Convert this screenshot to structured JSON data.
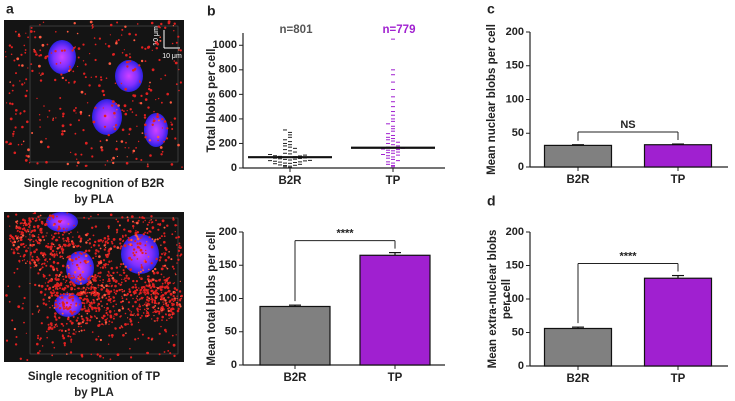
{
  "panel_a": {
    "panel_label": "a",
    "scale_label": "10 μm",
    "images": [
      {
        "caption_lines": [
          "Single recognition of B2R",
          "by PLA"
        ]
      },
      {
        "caption_lines": [
          "Single recognition of TP",
          "by PLA"
        ]
      }
    ]
  },
  "chart_data": [
    {
      "type": "dotplot",
      "panel_label": "b",
      "ylabel_lines": [
        "Total blobs per cell"
      ],
      "categories": [
        "B2R",
        "TP"
      ],
      "annotations": [
        {
          "text": "n=801",
          "color": "#555555"
        },
        {
          "text": "n=779",
          "color": "#a020d0"
        }
      ],
      "groups": [
        {
          "color": "#222222",
          "mean": 88,
          "values": [
            5,
            10,
            15,
            20,
            22,
            25,
            30,
            35,
            38,
            40,
            45,
            48,
            50,
            55,
            58,
            60,
            62,
            65,
            70,
            72,
            75,
            78,
            80,
            82,
            85,
            88,
            90,
            92,
            95,
            98,
            100,
            105,
            110,
            115,
            120,
            130,
            140,
            150,
            160,
            170,
            180,
            190,
            200,
            215,
            230,
            250,
            270,
            290,
            310
          ]
        },
        {
          "color": "#a020d0",
          "mean": 165,
          "values": [
            10,
            20,
            30,
            40,
            50,
            60,
            70,
            80,
            90,
            100,
            105,
            110,
            120,
            125,
            130,
            140,
            145,
            150,
            155,
            160,
            165,
            170,
            180,
            190,
            200,
            210,
            220,
            230,
            240,
            250,
            265,
            280,
            300,
            320,
            340,
            360,
            380,
            400,
            430,
            460,
            500,
            540,
            580,
            640,
            700,
            760,
            800,
            1050
          ]
        }
      ],
      "ylim": [
        0,
        1100
      ],
      "yticks": [
        0,
        200,
        400,
        600,
        800,
        1000
      ]
    },
    {
      "type": "bar",
      "panel_label": "",
      "ylabel_lines": [
        "Mean total blobs per cell"
      ],
      "categories": [
        "B2R",
        "TP"
      ],
      "values": [
        88,
        165
      ],
      "errors": [
        2,
        4
      ],
      "colors": [
        "#808080",
        "#a020d0"
      ],
      "significance": "****",
      "ylim": [
        0,
        200
      ],
      "yticks": [
        0,
        50,
        100,
        150,
        200
      ]
    },
    {
      "type": "bar",
      "panel_label": "c",
      "ylabel_lines": [
        "Mean nuclear blobs per cell"
      ],
      "categories": [
        "B2R",
        "TP"
      ],
      "values": [
        32,
        33
      ],
      "errors": [
        1,
        1
      ],
      "colors": [
        "#808080",
        "#a020d0"
      ],
      "significance": "NS",
      "ylim": [
        0,
        200
      ],
      "yticks": [
        0,
        50,
        100,
        150,
        200
      ]
    },
    {
      "type": "bar",
      "panel_label": "d",
      "ylabel_lines": [
        "Mean extra-nuclear blobs",
        "per cell"
      ],
      "categories": [
        "B2R",
        "TP"
      ],
      "values": [
        56,
        131
      ],
      "errors": [
        2,
        4
      ],
      "colors": [
        "#808080",
        "#a020d0"
      ],
      "significance": "****",
      "ylim": [
        0,
        200
      ],
      "yticks": [
        0,
        50,
        100,
        150,
        200
      ]
    }
  ]
}
